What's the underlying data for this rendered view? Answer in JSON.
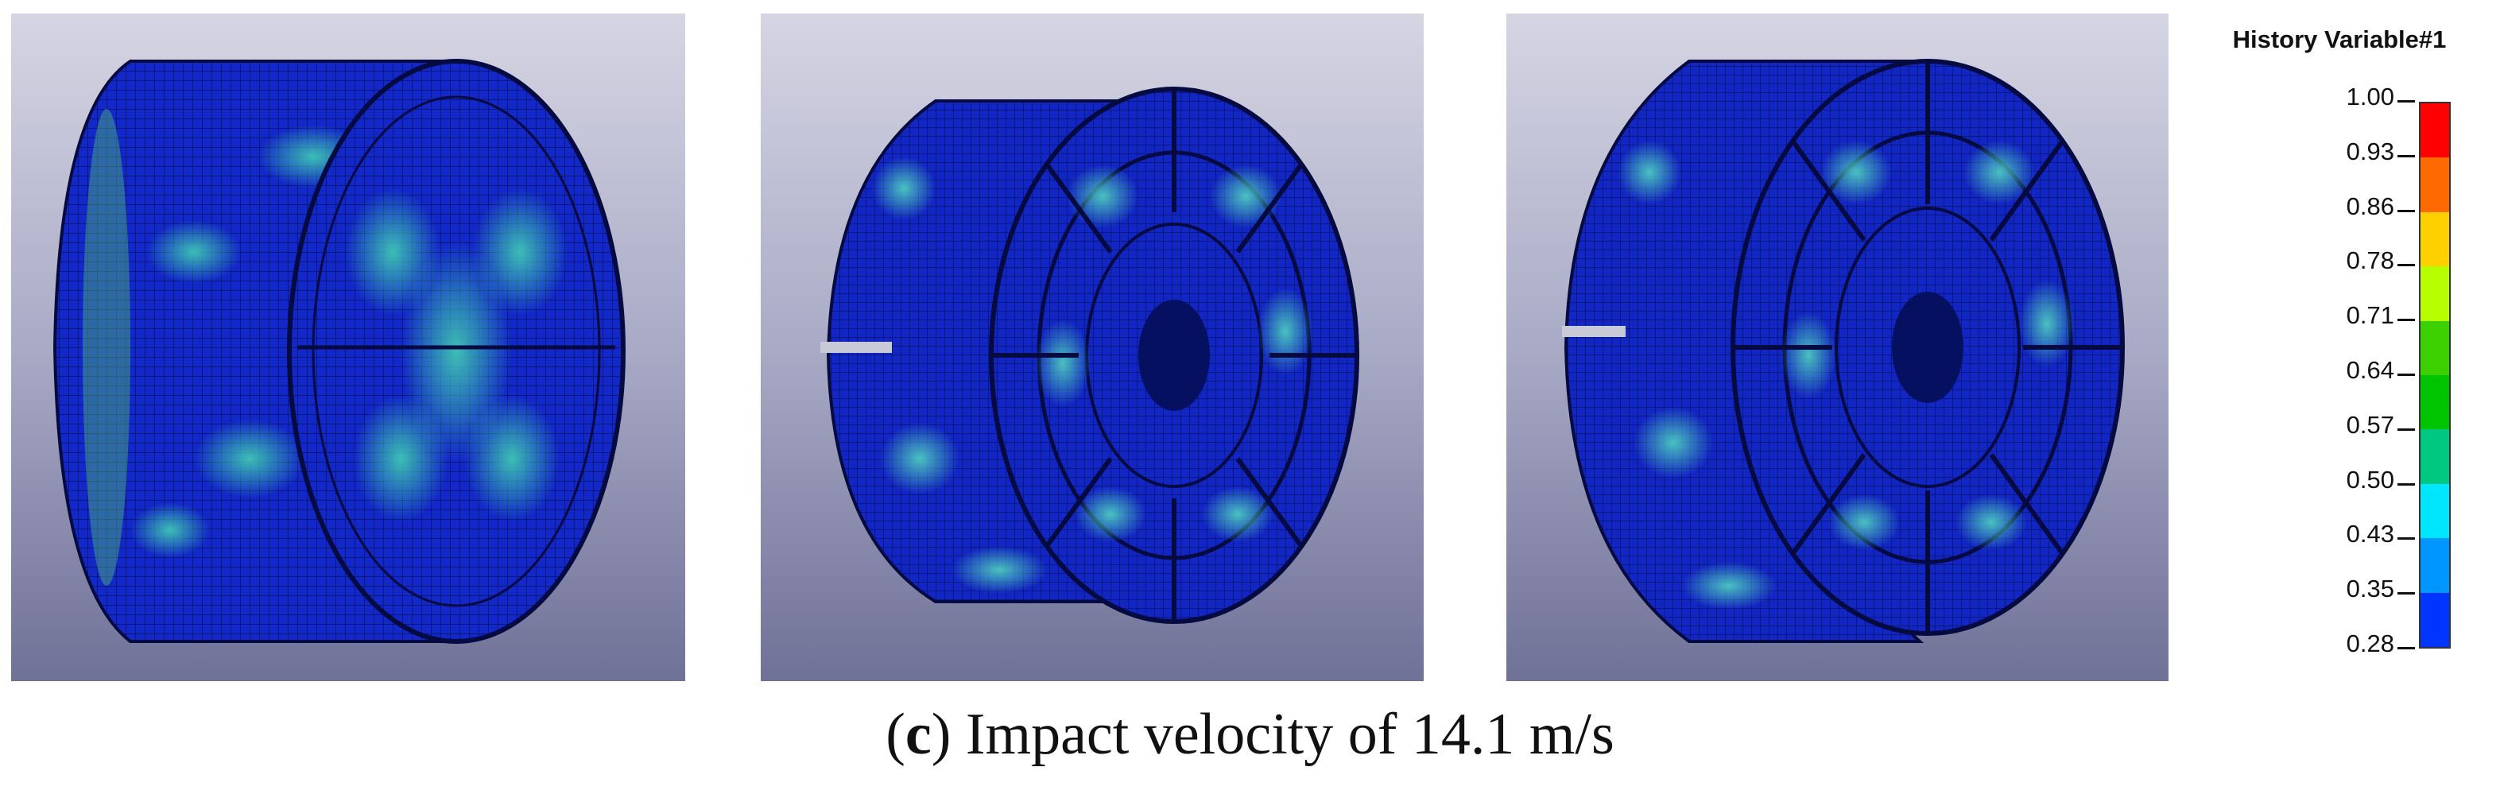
{
  "legend": {
    "title": "History Variable#1",
    "ticks": [
      "1.00",
      "0.93",
      "0.86",
      "0.78",
      "0.71",
      "0.64",
      "0.57",
      "0.50",
      "0.43",
      "0.35",
      "0.28"
    ],
    "colors": [
      "#ff0000",
      "#ff6a00",
      "#ffd000",
      "#b7ff00",
      "#3cd000",
      "#00c400",
      "#00c880",
      "#00e6ff",
      "#0096ff",
      "#0034ff"
    ]
  },
  "panels": [
    {
      "name": "simulation-panel-1",
      "mesh_color": "#0b1fc0",
      "highlight_color": "#1f9ea6"
    },
    {
      "name": "simulation-panel-2",
      "mesh_color": "#0b1fc0",
      "highlight_color": "#1f9ea6"
    },
    {
      "name": "simulation-panel-3",
      "mesh_color": "#0b1fc0",
      "highlight_color": "#1f9ea6"
    }
  ],
  "caption": {
    "open_paren": "(",
    "letter": "c",
    "rest": ") Impact velocity of 14.1 m/s"
  }
}
